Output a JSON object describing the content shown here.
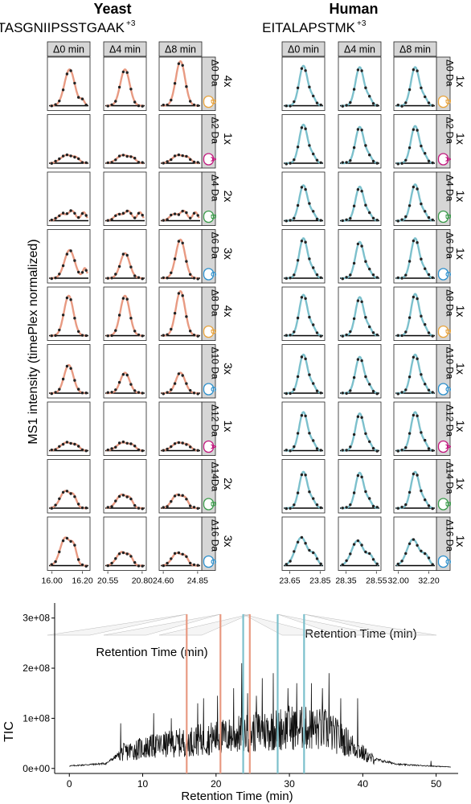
{
  "chart_data": [
    {
      "type": "line",
      "title": "Yeast",
      "subtitle": "TASGNIIPSSTGAAK",
      "charge_superscript": "+3",
      "ylabel": "MS1 intensity (timePlex normalized)",
      "xlabel": "Retention Time (min)",
      "line_color": "#E89A82",
      "columns": [
        {
          "strip": "Δ0 min",
          "xlim": [
            15.97,
            16.25
          ],
          "tick_labels": [
            "16.00",
            "16.20"
          ],
          "ticks": [
            16.0,
            16.2
          ]
        },
        {
          "strip": "Δ4 min",
          "xlim": [
            20.52,
            20.83
          ],
          "tick_labels": [
            "20.55",
            "20.80"
          ],
          "ticks": [
            20.55,
            20.8
          ]
        },
        {
          "strip": "Δ8 min",
          "xlim": [
            24.57,
            24.88
          ],
          "tick_labels": [
            "24.60",
            "24.85"
          ],
          "ticks": [
            24.6,
            24.85
          ]
        }
      ],
      "rows": [
        {
          "strip": "Δ0 Da",
          "badge": "D",
          "badge_color": "#E8A33C",
          "ratio": "4x",
          "peak_height": [
            0.8,
            0.8,
            0.98
          ]
        },
        {
          "strip": "Δ2 Da",
          "badge": "A",
          "badge_color": "#C2187E",
          "ratio": "1x",
          "peak_height": [
            0.18,
            0.18,
            0.18
          ]
        },
        {
          "strip": "Δ4 Da",
          "badge": "B",
          "badge_color": "#3A9A4A",
          "ratio": "2x",
          "peak_height": [
            0.22,
            0.22,
            0.22
          ]
        },
        {
          "strip": "Δ6 Da",
          "badge": "C",
          "badge_color": "#2B8FCC",
          "ratio": "3x",
          "peak_height": [
            0.62,
            0.55,
            0.85
          ]
        },
        {
          "strip": "Δ8 Da",
          "badge": "D",
          "badge_color": "#E8A33C",
          "ratio": "4x",
          "peak_height": [
            0.88,
            0.88,
            0.98
          ]
        },
        {
          "strip": "Δ10 Da",
          "badge": "C",
          "badge_color": "#2B8FCC",
          "ratio": "3x",
          "peak_height": [
            0.62,
            0.45,
            0.45
          ]
        },
        {
          "strip": "Δ12 Da",
          "badge": "A",
          "badge_color": "#C2187E",
          "ratio": "1x",
          "peak_height": [
            0.18,
            0.18,
            0.18
          ]
        },
        {
          "strip": "Δ14Da",
          "badge": "B",
          "badge_color": "#3A9A4A",
          "ratio": "2x",
          "peak_height": [
            0.38,
            0.3,
            0.3
          ]
        },
        {
          "strip": "Δ16 Da",
          "badge": "C",
          "badge_color": "#2B8FCC",
          "ratio": "3x",
          "peak_height": [
            0.62,
            0.3,
            0.28
          ]
        }
      ]
    },
    {
      "type": "line",
      "title": "Human",
      "subtitle": "EITALAPSTMK",
      "charge_superscript": "+3",
      "xlabel": "Retention Time (min)",
      "line_color": "#7CC0CC",
      "columns": [
        {
          "strip": "Δ0 min",
          "xlim": [
            23.6,
            23.88
          ],
          "tick_labels": [
            "23.65",
            "23.85"
          ],
          "ticks": [
            23.65,
            23.85
          ]
        },
        {
          "strip": "Δ4 min",
          "xlim": [
            28.3,
            28.58
          ],
          "tick_labels": [
            "28.35",
            "28.55"
          ],
          "ticks": [
            28.35,
            28.55
          ]
        },
        {
          "strip": "Δ8 min",
          "xlim": [
            31.97,
            32.25
          ],
          "tick_labels": [
            "32.00",
            "32.20"
          ],
          "ticks": [
            32.0,
            32.2
          ]
        }
      ],
      "rows": [
        {
          "strip": "Δ0 Da",
          "badge": "D",
          "badge_color": "#E8A33C",
          "ratio": "1x",
          "peak_height": [
            0.88,
            0.85,
            0.85
          ]
        },
        {
          "strip": "Δ2 Da",
          "badge": "A",
          "badge_color": "#C2187E",
          "ratio": "1x",
          "peak_height": [
            0.85,
            0.8,
            0.82
          ]
        },
        {
          "strip": "Δ4 Da",
          "badge": "B",
          "badge_color": "#3A9A4A",
          "ratio": "1x",
          "peak_height": [
            0.78,
            0.75,
            0.8
          ]
        },
        {
          "strip": "Δ6 Da",
          "badge": "C",
          "badge_color": "#2B8FCC",
          "ratio": "1x",
          "peak_height": [
            0.88,
            0.8,
            0.88
          ]
        },
        {
          "strip": "Δ8 Da",
          "badge": "D",
          "badge_color": "#E8A33C",
          "ratio": "1x",
          "peak_height": [
            0.9,
            0.85,
            0.92
          ]
        },
        {
          "strip": "Δ10 Da",
          "badge": "C",
          "badge_color": "#2B8FCC",
          "ratio": "1x",
          "peak_height": [
            0.85,
            0.8,
            0.85
          ]
        },
        {
          "strip": "Δ12 Da",
          "badge": "A",
          "badge_color": "#C2187E",
          "ratio": "1x",
          "peak_height": [
            0.85,
            0.82,
            0.85
          ]
        },
        {
          "strip": "Δ14 Da",
          "badge": "B",
          "badge_color": "#3A9A4A",
          "ratio": "1x",
          "peak_height": [
            0.8,
            0.78,
            0.8
          ]
        },
        {
          "strip": "Δ16 Da",
          "badge": "C",
          "badge_color": "#2B8FCC",
          "ratio": "1x",
          "peak_height": [
            0.62,
            0.55,
            0.58
          ]
        }
      ]
    },
    {
      "type": "line",
      "xlabel": "Retention Time (min)",
      "ylabel": "TIC",
      "xlim": [
        -2,
        53
      ],
      "ylim": [
        -10000000.0,
        330000000.0
      ],
      "x_ticks": [
        0,
        10,
        20,
        30,
        40,
        50
      ],
      "y_ticks": [
        0,
        100000000,
        200000000,
        300000000
      ],
      "y_tick_labels": [
        "0e+00",
        "1e+08",
        "2e+08",
        "3e+08"
      ],
      "series_color": "#111111",
      "markers": [
        {
          "x": 16.0,
          "color": "#E89A82"
        },
        {
          "x": 20.6,
          "color": "#E89A82"
        },
        {
          "x": 23.7,
          "color": "#7CC0CC"
        },
        {
          "x": 24.6,
          "color": "#E89A82"
        },
        {
          "x": 28.4,
          "color": "#7CC0CC"
        },
        {
          "x": 32.0,
          "color": "#7CC0CC"
        }
      ],
      "envelope": [
        {
          "x": 0,
          "y": 5000000.0
        },
        {
          "x": 5,
          "y": 10000000.0
        },
        {
          "x": 7,
          "y": 30000000.0
        },
        {
          "x": 10,
          "y": 40000000.0
        },
        {
          "x": 15,
          "y": 50000000.0
        },
        {
          "x": 20,
          "y": 60000000.0
        },
        {
          "x": 25,
          "y": 70000000.0
        },
        {
          "x": 30,
          "y": 80000000.0
        },
        {
          "x": 35,
          "y": 75000000.0
        },
        {
          "x": 38,
          "y": 50000000.0
        },
        {
          "x": 41,
          "y": 20000000.0
        },
        {
          "x": 45,
          "y": 8000000.0
        },
        {
          "x": 49,
          "y": 5000000.0
        },
        {
          "x": 52,
          "y": 3000000.0
        }
      ],
      "spikes": [
        {
          "x": 7.0,
          "y": 90000000.0
        },
        {
          "x": 11.5,
          "y": 110000000.0
        },
        {
          "x": 13.9,
          "y": 100000000.0
        },
        {
          "x": 16.0,
          "y": 120000000.0
        },
        {
          "x": 17.5,
          "y": 130000000.0
        },
        {
          "x": 18.3,
          "y": 140000000.0
        },
        {
          "x": 20.2,
          "y": 145000000.0
        },
        {
          "x": 22.4,
          "y": 160000000.0
        },
        {
          "x": 23.5,
          "y": 210000000.0
        },
        {
          "x": 24.3,
          "y": 150000000.0
        },
        {
          "x": 25.5,
          "y": 145000000.0
        },
        {
          "x": 26.3,
          "y": 180000000.0
        },
        {
          "x": 27.8,
          "y": 190000000.0
        },
        {
          "x": 29.8,
          "y": 160000000.0
        },
        {
          "x": 31.0,
          "y": 170000000.0
        },
        {
          "x": 33.0,
          "y": 170000000.0
        },
        {
          "x": 34.5,
          "y": 160000000.0
        },
        {
          "x": 35.4,
          "y": 190000000.0
        },
        {
          "x": 37.0,
          "y": 140000000.0
        },
        {
          "x": 39.3,
          "y": 140000000.0
        },
        {
          "x": 49.3,
          "y": 15000000.0
        }
      ]
    }
  ]
}
